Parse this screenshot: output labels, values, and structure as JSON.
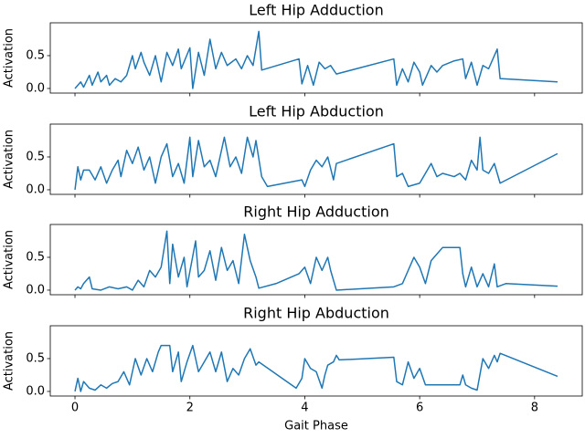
{
  "chart_data": [
    {
      "type": "line",
      "title": "Left Hip Adduction",
      "ylabel": "Activation",
      "color": "#1f77b4",
      "x": [
        0,
        0.05,
        0.1,
        0.15,
        0.25,
        0.3,
        0.4,
        0.45,
        0.55,
        0.6,
        0.7,
        0.8,
        0.9,
        1.0,
        1.05,
        1.15,
        1.2,
        1.3,
        1.4,
        1.5,
        1.6,
        1.7,
        1.8,
        1.85,
        2.0,
        2.05,
        2.15,
        2.25,
        2.35,
        2.45,
        2.55,
        2.65,
        2.8,
        2.9,
        3.0,
        3.1,
        3.2,
        3.25,
        3.9,
        3.95,
        4.05,
        4.15,
        4.25,
        4.35,
        4.45,
        4.55,
        5.55,
        5.6,
        5.7,
        5.8,
        5.9,
        6.0,
        6.05,
        6.2,
        6.3,
        6.4,
        6.6,
        6.75,
        6.8,
        6.9,
        7.0,
        7.1,
        7.2,
        7.35,
        7.4,
        8.4
      ],
      "values": [
        0,
        0.05,
        0.1,
        0.02,
        0.2,
        0.05,
        0.25,
        0.1,
        0.2,
        0.05,
        0.15,
        0.1,
        0.2,
        0.5,
        0.3,
        0.55,
        0.4,
        0.2,
        0.5,
        0.1,
        0.55,
        0.35,
        0.6,
        0.3,
        0.62,
        0.0,
        0.55,
        0.2,
        0.75,
        0.3,
        0.55,
        0.35,
        0.45,
        0.3,
        0.5,
        0.35,
        0.87,
        0.28,
        0.45,
        0.07,
        0.35,
        0.05,
        0.4,
        0.3,
        0.35,
        0.22,
        0.45,
        0.05,
        0.3,
        0.1,
        0.4,
        0.25,
        0.05,
        0.35,
        0.25,
        0.35,
        0.42,
        0.45,
        0.15,
        0.4,
        0.05,
        0.35,
        0.3,
        0.6,
        0.15,
        0.1
      ],
      "xlim": [
        -0.43,
        8.83
      ],
      "ylim": [
        -0.07,
        1.0
      ],
      "xticks": [
        0,
        2,
        4,
        6,
        8
      ],
      "yticks": [
        {
          "value": 0,
          "label": "0.0"
        },
        {
          "value": 0.5,
          "label": "0.5"
        }
      ]
    },
    {
      "type": "line",
      "title": "Left Hip Abduction",
      "ylabel": "Activation",
      "color": "#1f77b4",
      "x": [
        0,
        0.05,
        0.1,
        0.15,
        0.25,
        0.35,
        0.45,
        0.55,
        0.65,
        0.75,
        0.8,
        0.9,
        1.0,
        1.1,
        1.2,
        1.3,
        1.4,
        1.5,
        1.6,
        1.7,
        1.8,
        1.9,
        2.0,
        2.05,
        2.15,
        2.25,
        2.35,
        2.45,
        2.6,
        2.7,
        2.8,
        2.9,
        3.0,
        3.1,
        3.15,
        3.25,
        3.35,
        3.95,
        4.0,
        4.1,
        4.2,
        4.3,
        4.4,
        4.5,
        4.55,
        5.55,
        5.6,
        5.7,
        5.8,
        6.0,
        6.1,
        6.2,
        6.3,
        6.4,
        6.6,
        6.7,
        6.8,
        6.9,
        7.0,
        7.05,
        7.1,
        7.2,
        7.3,
        7.4,
        8.4
      ],
      "values": [
        0,
        0.35,
        0.15,
        0.3,
        0.3,
        0.15,
        0.35,
        0.1,
        0.3,
        0.45,
        0.2,
        0.6,
        0.4,
        0.65,
        0.3,
        0.5,
        0.1,
        0.5,
        0.7,
        0.2,
        0.4,
        0.1,
        0.8,
        0.2,
        0.75,
        0.35,
        0.45,
        0.2,
        0.8,
        0.35,
        0.5,
        0.25,
        0.8,
        0.5,
        0.75,
        0.2,
        0.05,
        0.15,
        0.05,
        0.3,
        0.45,
        0.35,
        0.5,
        0.15,
        0.4,
        0.7,
        0.2,
        0.25,
        0.05,
        0.1,
        0.25,
        0.4,
        0.2,
        0.25,
        0.2,
        0.25,
        0.15,
        0.45,
        0.3,
        0.8,
        0.3,
        0.25,
        0.4,
        0.1,
        0.55
      ],
      "xlim": [
        -0.43,
        8.83
      ],
      "ylim": [
        -0.07,
        1.0
      ],
      "xticks": [
        0,
        2,
        4,
        6,
        8
      ],
      "yticks": [
        {
          "value": 0,
          "label": "0.0"
        },
        {
          "value": 0.5,
          "label": "0.5"
        }
      ]
    },
    {
      "type": "line",
      "title": "Right Hip Adduction",
      "ylabel": "Activation",
      "color": "#1f77b4",
      "x": [
        0,
        0.05,
        0.1,
        0.15,
        0.2,
        0.25,
        0.3,
        0.45,
        0.6,
        0.75,
        0.9,
        1.0,
        1.1,
        1.2,
        1.3,
        1.4,
        1.5,
        1.6,
        1.65,
        1.7,
        1.8,
        1.9,
        1.95,
        2.1,
        2.15,
        2.25,
        2.35,
        2.45,
        2.55,
        2.65,
        2.75,
        2.85,
        2.95,
        3.05,
        3.15,
        3.2,
        3.5,
        3.9,
        4.0,
        4.1,
        4.2,
        4.3,
        4.4,
        4.45,
        4.55,
        5.55,
        5.7,
        5.8,
        5.9,
        6.0,
        6.1,
        6.2,
        6.3,
        6.4,
        6.7,
        6.75,
        6.8,
        6.9,
        7.0,
        7.1,
        7.2,
        7.3,
        7.35,
        7.5,
        8.4
      ],
      "values": [
        0,
        0.05,
        0.02,
        0.1,
        0.15,
        0.2,
        0.02,
        0.0,
        0.05,
        0.02,
        0.05,
        0.0,
        0.15,
        0.05,
        0.3,
        0.2,
        0.35,
        0.9,
        0.1,
        0.7,
        0.2,
        0.5,
        0.05,
        0.75,
        0.2,
        0.3,
        0.6,
        0.15,
        0.65,
        0.3,
        0.45,
        0.1,
        0.85,
        0.45,
        0.2,
        0.03,
        0.1,
        0.25,
        0.35,
        0.1,
        0.5,
        0.3,
        0.5,
        0.3,
        0.0,
        0.05,
        0.1,
        0.3,
        0.5,
        0.35,
        0.1,
        0.45,
        0.55,
        0.65,
        0.65,
        0.25,
        0.05,
        0.35,
        0.05,
        0.25,
        0.05,
        0.4,
        0.05,
        0.1,
        0.06
      ],
      "xlim": [
        -0.43,
        8.83
      ],
      "ylim": [
        -0.07,
        1.0
      ],
      "xticks": [
        0,
        2,
        4,
        6,
        8
      ],
      "yticks": [
        {
          "value": 0,
          "label": "0.0"
        },
        {
          "value": 0.5,
          "label": "0.5"
        }
      ]
    },
    {
      "type": "line",
      "title": "Right Hip Abduction",
      "ylabel": "Activation",
      "xlabel": "Gait Phase",
      "color": "#1f77b4",
      "x": [
        0,
        0.05,
        0.1,
        0.15,
        0.25,
        0.35,
        0.45,
        0.55,
        0.65,
        0.75,
        0.85,
        0.95,
        1.05,
        1.15,
        1.25,
        1.35,
        1.45,
        1.5,
        1.65,
        1.7,
        1.8,
        1.85,
        1.95,
        2.05,
        2.15,
        2.25,
        2.35,
        2.45,
        2.55,
        2.65,
        2.75,
        2.85,
        2.95,
        3.05,
        3.15,
        3.2,
        3.85,
        3.95,
        4.0,
        4.1,
        4.2,
        4.3,
        4.35,
        4.4,
        4.5,
        4.55,
        4.6,
        5.55,
        5.6,
        5.7,
        5.8,
        5.9,
        6.0,
        6.1,
        6.4,
        6.7,
        6.75,
        6.8,
        6.9,
        7.0,
        7.1,
        7.2,
        7.3,
        7.35,
        7.4,
        8.4
      ],
      "values": [
        0,
        0.2,
        0.0,
        0.15,
        0.05,
        0.02,
        0.1,
        0.05,
        0.12,
        0.15,
        0.3,
        0.1,
        0.5,
        0.25,
        0.5,
        0.3,
        0.6,
        0.7,
        0.7,
        0.3,
        0.6,
        0.15,
        0.45,
        0.7,
        0.3,
        0.45,
        0.6,
        0.3,
        0.6,
        0.15,
        0.35,
        0.25,
        0.5,
        0.65,
        0.4,
        0.45,
        0.05,
        0.2,
        0.5,
        0.35,
        0.3,
        0.05,
        0.25,
        0.4,
        0.45,
        0.55,
        0.48,
        0.52,
        0.15,
        0.1,
        0.45,
        0.2,
        0.35,
        0.1,
        0.1,
        0.1,
        0.25,
        0.1,
        0.05,
        0.02,
        0.5,
        0.35,
        0.55,
        0.45,
        0.58,
        0.23
      ],
      "xlim": [
        -0.43,
        8.83
      ],
      "ylim": [
        -0.07,
        1.0
      ],
      "xticks": [
        0,
        2,
        4,
        6,
        8
      ],
      "yticks": [
        {
          "value": 0,
          "label": "0.0"
        },
        {
          "value": 0.5,
          "label": "0.5"
        }
      ]
    }
  ]
}
